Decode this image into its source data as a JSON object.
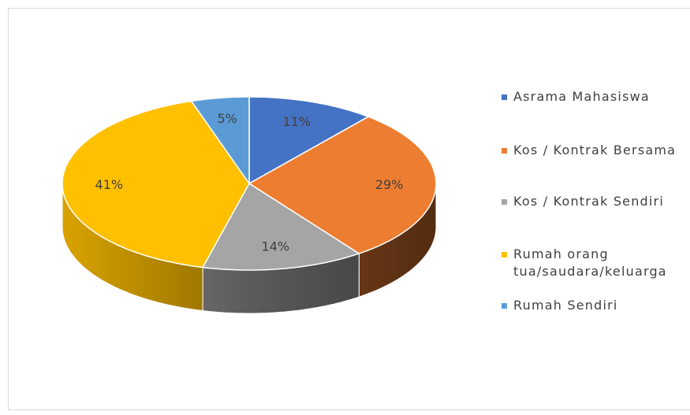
{
  "chart_data": {
    "type": "pie",
    "categories": [
      "Asrama Mahasiswa",
      "Kos / Kontrak Bersama",
      "Kos / Kontrak Sendiri",
      "Rumah orang tua/saudara/keluarga",
      "Rumah Sendiri"
    ],
    "values": [
      11,
      29,
      14,
      41,
      5
    ],
    "value_labels": [
      "11%",
      "29%",
      "14%",
      "41%",
      "5%"
    ],
    "colors": [
      "#4472c4",
      "#ed7d31",
      "#a5a5a5",
      "#ffc000",
      "#5b9bd5"
    ],
    "legend": "right"
  }
}
